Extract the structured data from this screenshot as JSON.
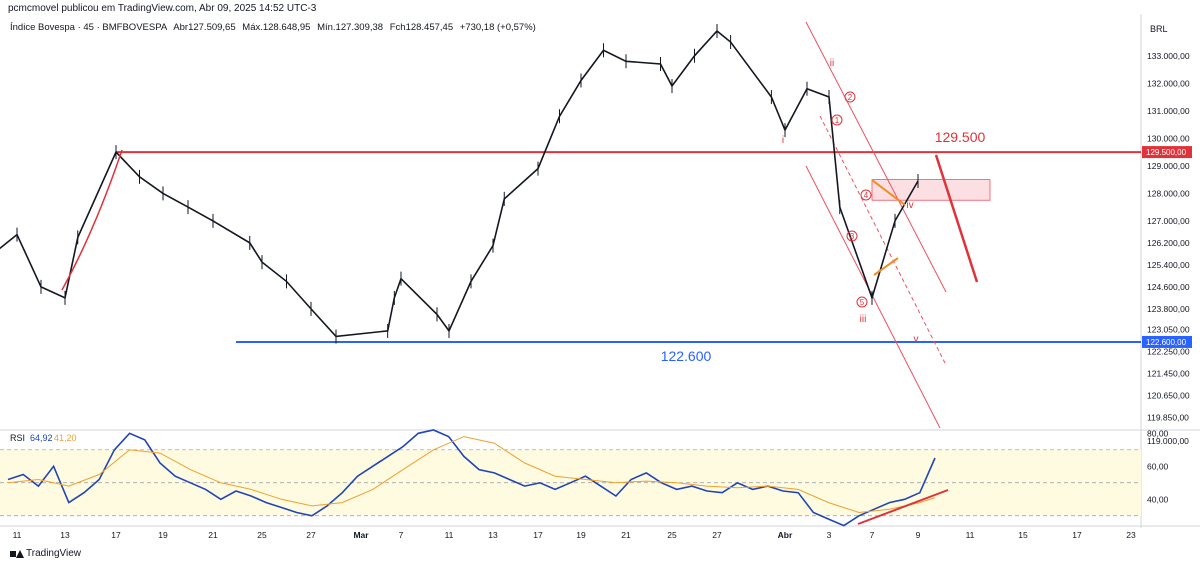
{
  "header": {
    "published": "pcmcmovel publicou em TradingView.com, Abr 09, 2025 14:52 UTC-3",
    "symbol": "Índice Bovespa · 45 · BMFBOVESPA",
    "open": "Abr127.509,65",
    "high": "Máx.128.648,95",
    "low": "Mín.127.309,38",
    "close": "Fch128.457,45",
    "change": "+730,18 (+0,57%)"
  },
  "currency": "BRL",
  "footer": {
    "brand": "TradingView"
  },
  "colors": {
    "up": "#131722",
    "down": "#131722",
    "resistance": "#e0323a",
    "support": "#2962ff",
    "rsi_line": "#1f45b8",
    "rsi_ma": "#f0a030",
    "rsi_band": "#fffbe0",
    "channel": "#f05060",
    "wave_arrow": "#f08c20"
  },
  "chart_data": [
    {
      "type": "line",
      "title": "Índice Bovespa · 45 · BMFBOVESPA",
      "ylabel": "BRL",
      "ylim": [
        119400,
        134300
      ],
      "yticks": [
        "133.000,00",
        "132.000,00",
        "131.000,00",
        "130.000,00",
        "129.000,00",
        "128.000,00",
        "127.000,00",
        "126.200,00",
        "125.400,00",
        "124.600,00",
        "123.800,00",
        "123.050,00",
        "122.250,00",
        "121.450,00",
        "120.650,00",
        "119.850,00",
        "119.000,00"
      ],
      "xticks": [
        "11",
        "13",
        "17",
        "19",
        "21",
        "25",
        "27",
        "Mar",
        "7",
        "11",
        "13",
        "17",
        "19",
        "21",
        "25",
        "27",
        "Abr",
        "3",
        "7",
        "9",
        "11",
        "15",
        "17",
        "23"
      ],
      "x_dates": [
        "2025-02-11",
        "2025-02-13",
        "2025-02-17",
        "2025-02-19",
        "2025-02-21",
        "2025-02-25",
        "2025-02-27",
        "2025-03-01",
        "2025-03-07",
        "2025-03-11",
        "2025-03-13",
        "2025-03-17",
        "2025-03-19",
        "2025-03-21",
        "2025-03-25",
        "2025-03-27",
        "2025-04-01",
        "2025-04-03",
        "2025-04-07",
        "2025-04-09",
        "2025-04-11",
        "2025-04-15",
        "2025-04-17",
        "2025-04-23"
      ],
      "series": [
        {
          "x": [
            "2025-02-10",
            "2025-02-11",
            "2025-02-12",
            "2025-02-13",
            "2025-02-14",
            "2025-02-17",
            "2025-02-18",
            "2025-02-19",
            "2025-02-20",
            "2025-02-21",
            "2025-02-24",
            "2025-02-25",
            "2025-02-26",
            "2025-02-27",
            "2025-02-28",
            "2025-03-05",
            "2025-03-06",
            "2025-03-07",
            "2025-03-10",
            "2025-03-11",
            "2025-03-12",
            "2025-03-13",
            "2025-03-14",
            "2025-03-17",
            "2025-03-18",
            "2025-03-19",
            "2025-03-20",
            "2025-03-21",
            "2025-03-24",
            "2025-03-25",
            "2025-03-26",
            "2025-03-27",
            "2025-03-28",
            "2025-03-31",
            "2025-04-01",
            "2025-04-02",
            "2025-04-03",
            "2025-04-04",
            "2025-04-07",
            "2025-04-08",
            "2025-04-09"
          ],
          "values": [
            125800,
            126500,
            124600,
            124200,
            126400,
            129500,
            128600,
            128000,
            127500,
            127000,
            126200,
            125500,
            124800,
            123800,
            122800,
            123000,
            124200,
            124900,
            123600,
            123000,
            124800,
            126100,
            127800,
            128900,
            130800,
            132100,
            133200,
            132800,
            132700,
            131900,
            133000,
            133900,
            133500,
            131500,
            130300,
            131800,
            131500,
            127500,
            124200,
            127000,
            128450
          ]
        }
      ],
      "annotations": {
        "resistance": {
          "value": 129500,
          "label": "129.500",
          "price_tag": "129.500,00"
        },
        "support": {
          "value": 122600,
          "label": "122.600",
          "price_tag": "122.600,00"
        },
        "waves_roman": [
          "ii",
          "i",
          "iii",
          "iv",
          "v"
        ],
        "waves_circled": [
          "1",
          "2",
          "3",
          "4",
          "5"
        ],
        "zone": [
          127750,
          128500
        ]
      },
      "grid": false,
      "legend": "none"
    },
    {
      "type": "line",
      "title": "RSI",
      "ylim": [
        25,
        82
      ],
      "yticks": [
        "80,00",
        "60,00",
        "40,00"
      ],
      "bands": [
        30,
        50,
        70
      ],
      "series": [
        {
          "name": "RSI",
          "value_label": "64,92",
          "x": [
            0,
            4,
            8,
            12,
            16,
            20,
            24,
            28,
            32,
            36,
            40,
            44,
            48,
            52,
            56,
            60,
            64,
            68,
            72,
            76,
            80,
            84,
            88,
            92,
            96,
            100,
            104,
            108,
            112,
            116,
            120,
            124,
            128,
            132,
            136,
            140,
            144,
            148,
            152,
            156,
            160,
            164,
            168,
            172,
            176,
            180,
            184,
            188,
            192,
            196,
            200,
            204,
            208,
            212,
            216,
            220,
            224,
            228,
            232,
            236,
            240,
            244
          ],
          "values": [
            52,
            55,
            48,
            60,
            38,
            44,
            52,
            70,
            80,
            76,
            62,
            54,
            50,
            46,
            40,
            45,
            42,
            38,
            35,
            32,
            30,
            36,
            44,
            54,
            60,
            66,
            72,
            80,
            82,
            78,
            66,
            58,
            56,
            52,
            48,
            50,
            46,
            50,
            54,
            48,
            42,
            52,
            56,
            50,
            46,
            48,
            45,
            44,
            50,
            46,
            48,
            45,
            44,
            32,
            28,
            24,
            30,
            34,
            38,
            40,
            44,
            65
          ]
        },
        {
          "name": "RSI MA",
          "value_label": "41,20",
          "x": [
            0,
            8,
            16,
            24,
            32,
            40,
            48,
            56,
            64,
            72,
            80,
            88,
            96,
            104,
            112,
            120,
            128,
            136,
            144,
            152,
            160,
            168,
            176,
            184,
            192,
            200,
            208,
            216,
            224,
            232,
            240,
            244
          ],
          "values": [
            50,
            52,
            48,
            55,
            70,
            68,
            58,
            50,
            46,
            40,
            36,
            38,
            46,
            58,
            70,
            78,
            74,
            62,
            54,
            52,
            50,
            51,
            50,
            48,
            47,
            48,
            46,
            38,
            32,
            34,
            38,
            41
          ]
        }
      ],
      "annotations": {
        "divergence": "rising red line"
      }
    }
  ]
}
